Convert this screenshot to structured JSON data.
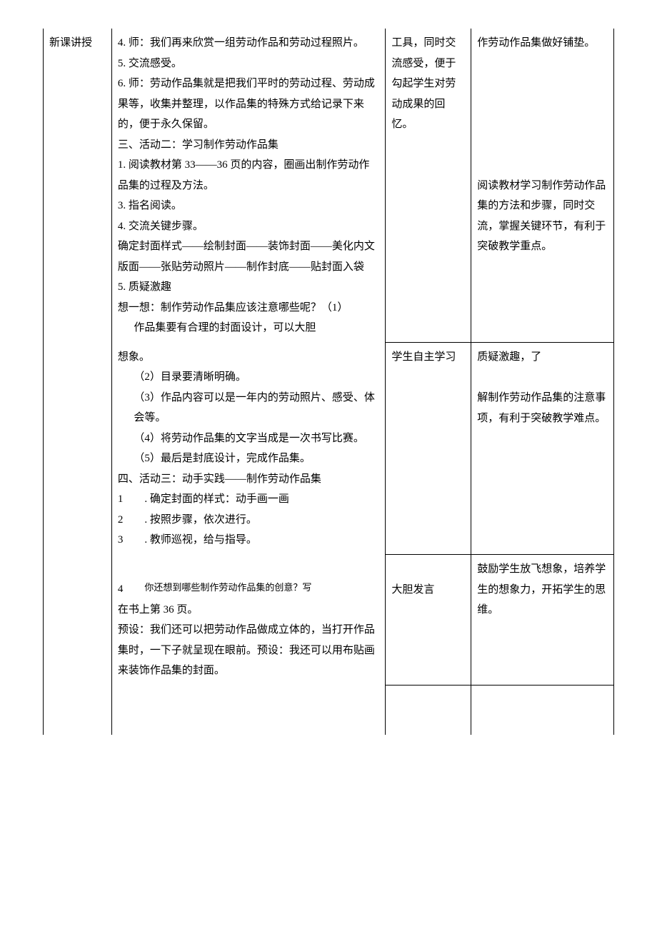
{
  "rowLabel": "新课讲授",
  "main": {
    "p4": "4. 师：我们再来欣赏一组劳动作品和劳动过程照片。",
    "p5": "5. 交流感受。",
    "p6": "6. 师：劳动作品集就是把我们平时的劳动过程、劳动成果等，收集并整理，以作品集的特殊方式给记录下来的，便于永久保留。",
    "act2_title": "三、活动二：学习制作劳动作品集",
    "act2_1": "1. 阅读教材第 33——36 页的内容，圈画出制作劳动作品集的过程及方法。",
    "act2_3": "3. 指名阅读。",
    "act2_4": "4. 交流关键步骤。",
    "act2_steps": "确定封面样式——绘制封面——装饰封面——美化内文版面——张贴劳动照片——制作封底——贴封面入袋",
    "act2_5": "5. 质疑激趣",
    "think": "想一想：制作劳动作品集应该注意哪些呢？（1）",
    "note1": "作品集要有合理的封面设计，可以大胆",
    "note1b": "想象。",
    "note2": "（2）目录要清晰明确。",
    "note3": "（3）作品内容可以是一年内的劳动照片、感受、体会等。",
    "note4": "（4）将劳动作品集的文字当成是一次书写比赛。",
    "note5": "（5）最后是封底设计，完成作品集。",
    "act3_title": "四、活动三：动手实践——制作劳动作品集",
    "act3_1n": "1",
    "act3_1t": ". 确定封面的样式：动手画一画",
    "act3_2n": "2",
    "act3_2t": ". 按照步骤，依次进行。",
    "act3_3n": "3",
    "act3_3t": ". 教师巡视，给与指导。",
    "act3_4n": "4",
    "act3_4t": "你还想到哪些制作劳动作品集的创意？写",
    "act3_4b": "在书上第 36 页。",
    "preset1": "预设：我们还可以把劳动作品做成立体的，当打开作品集时，一下子就呈现在眼前。预设：我还可以用布贴画来装饰作品集的封面。"
  },
  "student": {
    "s1": "工具，同时交流感受，便于勾起学生对劳动成果的回忆。",
    "s2": "学生自主学习",
    "s3": "大胆发言"
  },
  "intent": {
    "i1": "作劳动作品集做好铺垫。",
    "i2": "阅读教材学习制作劳动作品集的方法和步骤，同时交流，掌握关键环节，有利于突破教学重点。",
    "i3a": "质疑激趣，了",
    "i3b": "解制作劳动作品集的注意事项，有利于突破教学难点。",
    "i4": "鼓励学生放飞想象，培养学生的想象力，开拓学生的思维。"
  }
}
